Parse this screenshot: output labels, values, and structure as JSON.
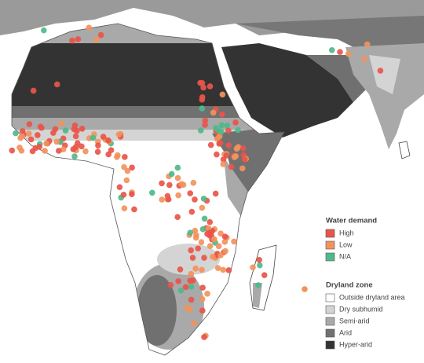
{
  "legend": {
    "water_demand": {
      "title": "Water demand",
      "items": [
        {
          "label": "High",
          "color": "#e8554a"
        },
        {
          "label": "Low",
          "color": "#f2935c"
        },
        {
          "label": "N/A",
          "color": "#4fb98a"
        }
      ]
    },
    "dryland_zone": {
      "title": "Dryland zone",
      "items": [
        {
          "label": "Outside dryland area",
          "color": "#ffffff"
        },
        {
          "label": "Dry subhumid",
          "color": "#d4d4d4"
        },
        {
          "label": "Semi-arid",
          "color": "#a9a9a9"
        },
        {
          "label": "Arid",
          "color": "#707070"
        },
        {
          "label": "Hyper-arid",
          "color": "#333333"
        }
      ]
    }
  }
}
